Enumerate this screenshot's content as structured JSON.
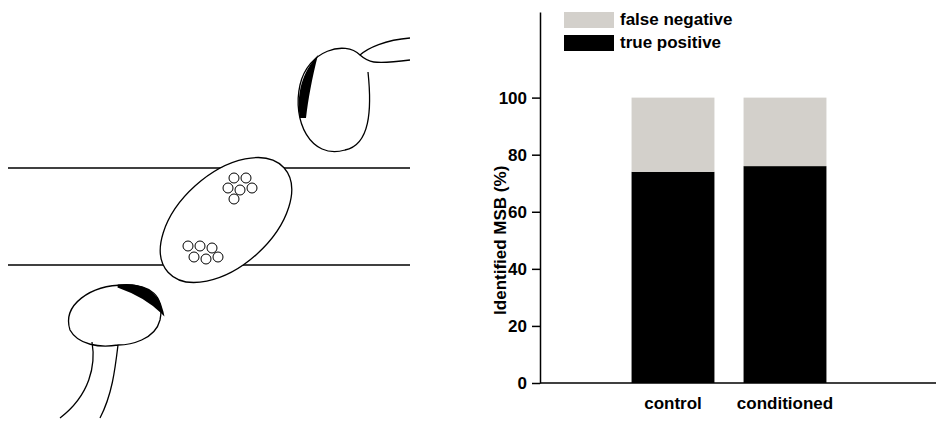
{
  "chart_data": {
    "type": "bar",
    "stacked": true,
    "ylabel": "Identified MSB (%)",
    "categories": [
      "control",
      "conditioned"
    ],
    "series": [
      {
        "name": "true positive",
        "color": "#000000",
        "values": [
          74,
          76
        ]
      },
      {
        "name": "false negative",
        "color": "#d3d0cb",
        "values": [
          26,
          24
        ]
      }
    ],
    "ylim": [
      0,
      130
    ],
    "yticks": [
      0,
      20,
      40,
      60,
      80,
      100
    ],
    "legend": "upper left"
  }
}
